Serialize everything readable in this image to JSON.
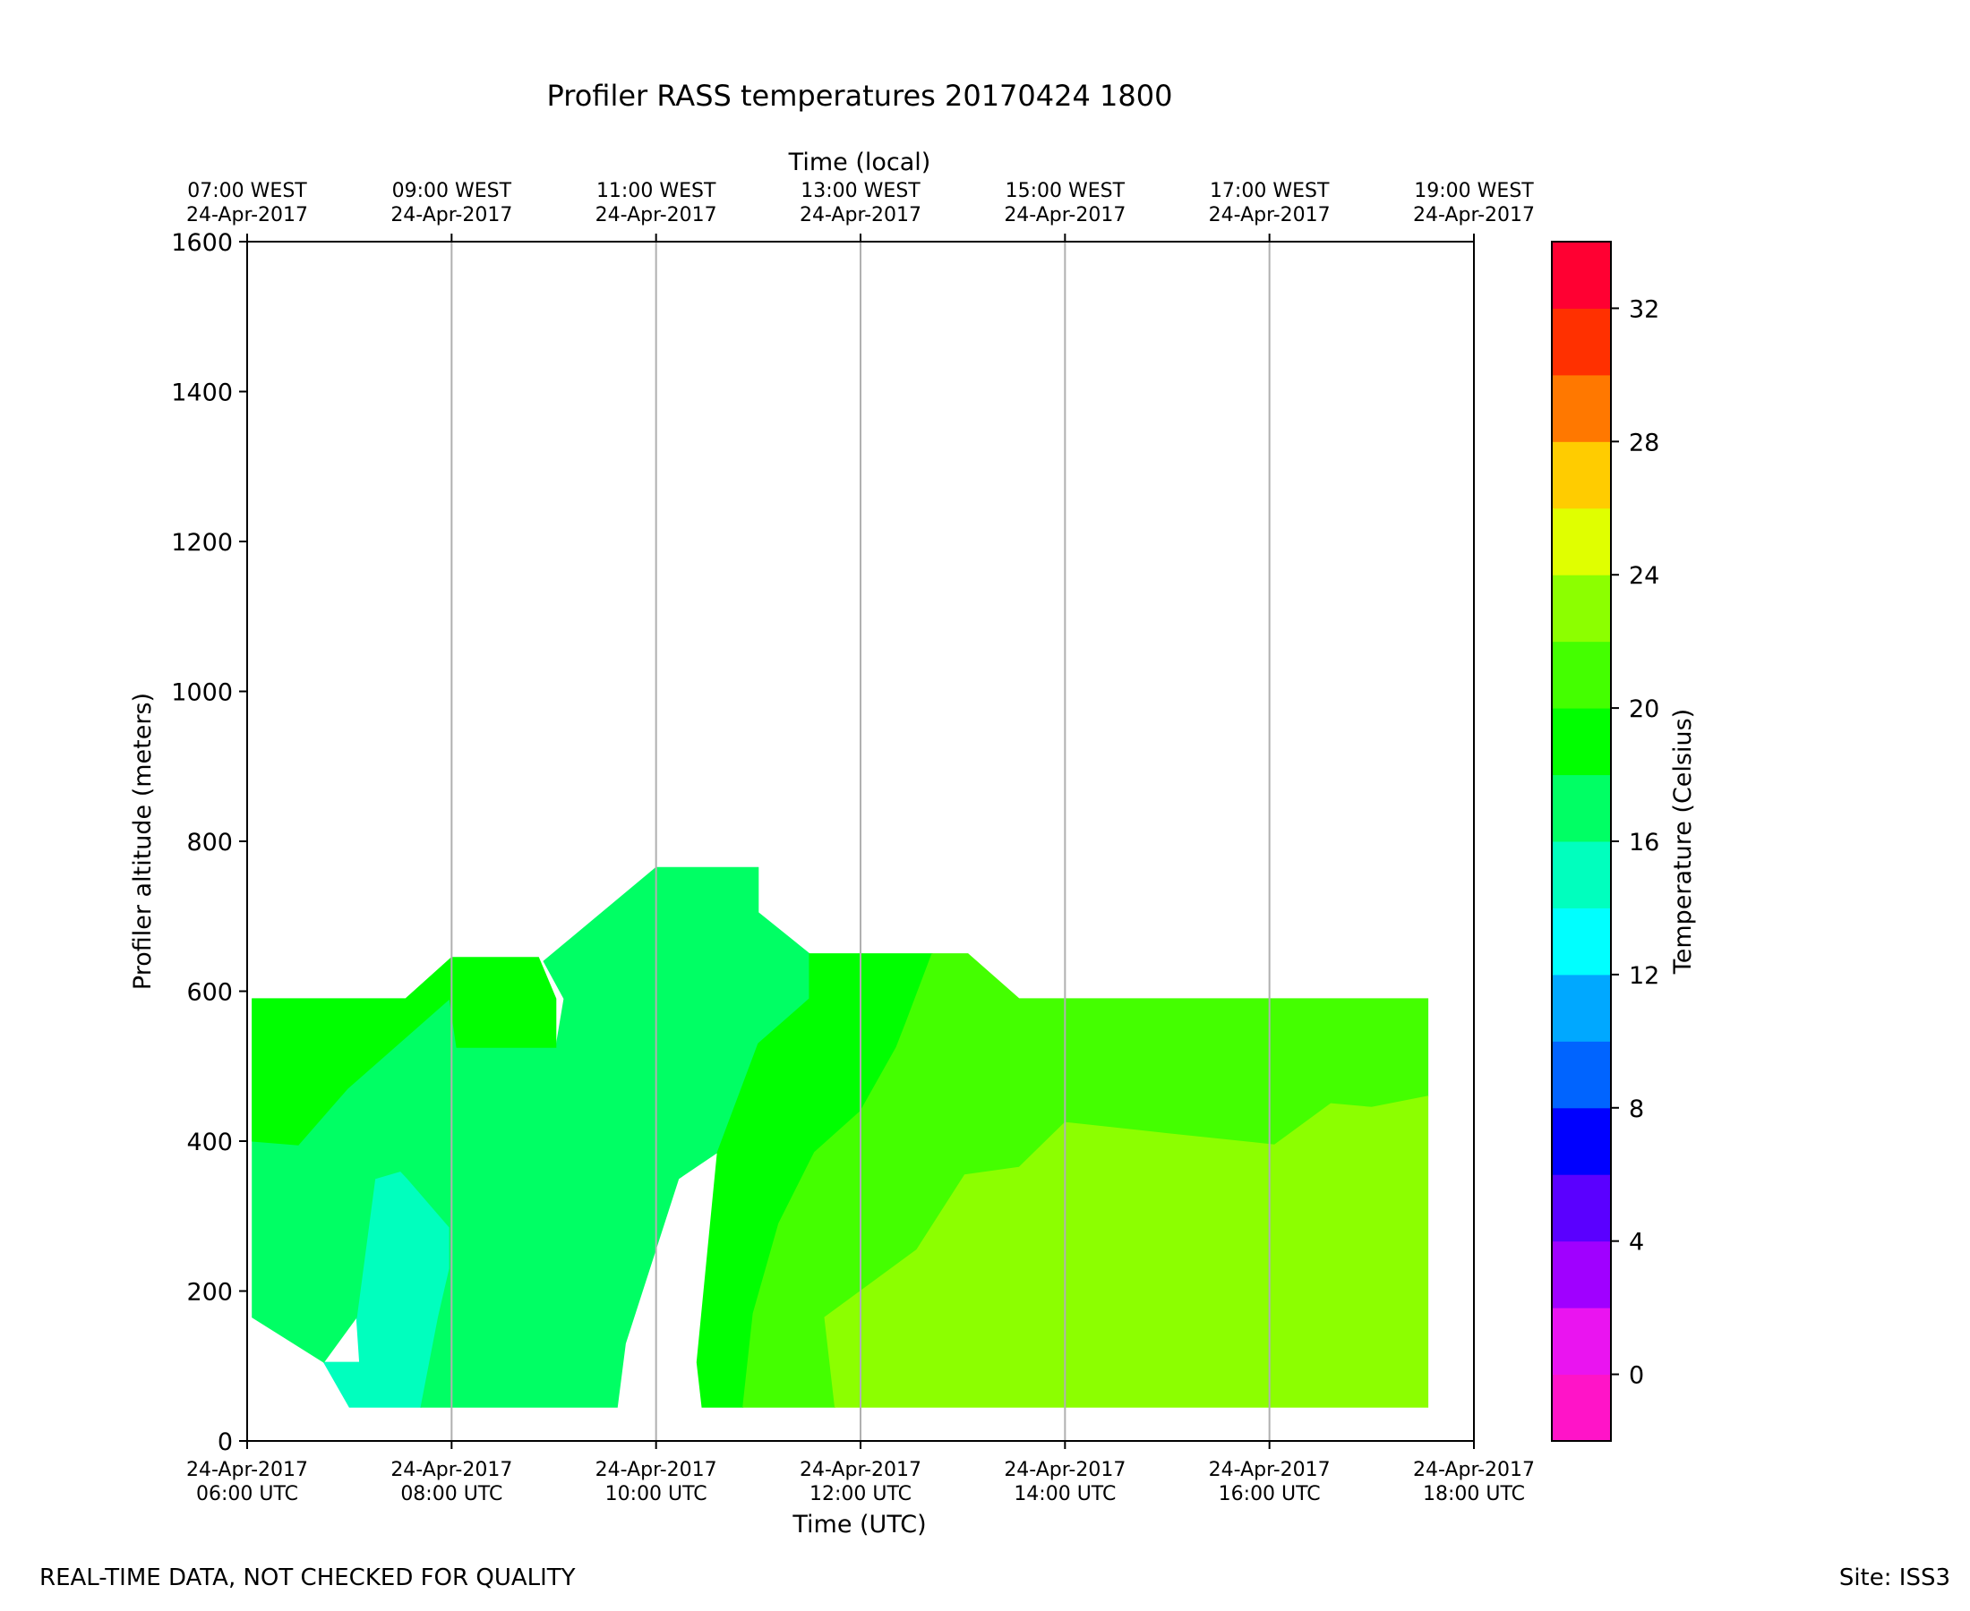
{
  "chart_data": {
    "type": "filled-contour",
    "title": "Profiler RASS temperatures 20170424 1800",
    "xlabel": "Time (UTC)",
    "x2label": "Time (local)",
    "ylabel": "Profiler altitude (meters)",
    "colorbar_label": "Temperature (Celsius)",
    "xlim_utc_hours": [
      6,
      18
    ],
    "ylim": [
      0,
      1600
    ],
    "x_ticks": [
      {
        "hour": 6,
        "date": "24-Apr-2017",
        "utc": "06:00 UTC",
        "local": "07:00 WEST"
      },
      {
        "hour": 8,
        "date": "24-Apr-2017",
        "utc": "08:00 UTC",
        "local": "09:00 WEST"
      },
      {
        "hour": 10,
        "date": "24-Apr-2017",
        "utc": "10:00 UTC",
        "local": "11:00 WEST"
      },
      {
        "hour": 12,
        "date": "24-Apr-2017",
        "utc": "12:00 UTC",
        "local": "13:00 WEST"
      },
      {
        "hour": 14,
        "date": "24-Apr-2017",
        "utc": "14:00 UTC",
        "local": "15:00 WEST"
      },
      {
        "hour": 16,
        "date": "24-Apr-2017",
        "utc": "16:00 UTC",
        "local": "17:00 WEST"
      },
      {
        "hour": 18,
        "date": "24-Apr-2017",
        "utc": "18:00 UTC",
        "local": "19:00 WEST"
      }
    ],
    "y_ticks": [
      0,
      200,
      400,
      600,
      800,
      1000,
      1200,
      1400,
      1600
    ],
    "grid": "vertical lines at x ticks",
    "colorbar_levels": [
      -2,
      0,
      2,
      4,
      6,
      8,
      10,
      12,
      14,
      16,
      18,
      20,
      22,
      24,
      26,
      28,
      30,
      32,
      34
    ],
    "colorbar_colors": [
      "#ff14c8",
      "#ea14f0",
      "#a000ff",
      "#5a00ff",
      "#0000ff",
      "#0064ff",
      "#00a8ff",
      "#00ffff",
      "#00ffbe",
      "#00ff64",
      "#00ff00",
      "#44ff00",
      "#8cff00",
      "#e0ff00",
      "#ffcc00",
      "#ff7800",
      "#ff3000",
      "#ff0032"
    ],
    "colorbar_ticks": [
      0,
      4,
      8,
      12,
      16,
      20,
      24,
      28,
      32
    ],
    "regions": [
      {
        "name": "14-16 C",
        "color": "#00ffbe",
        "points": [
          [
            7.07,
            165
          ],
          [
            7.25,
            350
          ],
          [
            7.5,
            360
          ],
          [
            7.57,
            350
          ],
          [
            7.98,
            285
          ],
          [
            7.98,
            230
          ],
          [
            7.87,
            165
          ],
          [
            7.7,
            45
          ],
          [
            7.0,
            45
          ],
          [
            6.75,
            105
          ],
          [
            7.1,
            105
          ]
        ]
      },
      {
        "name": "16-18 C",
        "color": "#00ff64",
        "points": [
          [
            6.05,
            590
          ],
          [
            6.05,
            400
          ],
          [
            6.5,
            395
          ],
          [
            6.98,
            470
          ],
          [
            7.98,
            590
          ],
          [
            8.05,
            525
          ],
          [
            9.02,
            525
          ],
          [
            9.1,
            590
          ],
          [
            8.9,
            640
          ],
          [
            10.0,
            765
          ],
          [
            11.0,
            765
          ],
          [
            11.0,
            705
          ],
          [
            11.5,
            650
          ],
          [
            11.5,
            590
          ],
          [
            11.0,
            530
          ],
          [
            10.6,
            385
          ],
          [
            10.22,
            350
          ],
          [
            9.7,
            130
          ],
          [
            9.62,
            45
          ],
          [
            7.7,
            45
          ],
          [
            7.87,
            165
          ],
          [
            7.98,
            230
          ],
          [
            7.98,
            285
          ],
          [
            7.57,
            350
          ],
          [
            7.5,
            360
          ],
          [
            7.25,
            350
          ],
          [
            7.07,
            165
          ],
          [
            6.75,
            105
          ],
          [
            6.05,
            165
          ]
        ]
      },
      {
        "name": "18-20 C",
        "color": "#00ff00",
        "points": [
          [
            6.05,
            590
          ],
          [
            7.55,
            590
          ],
          [
            8.0,
            645
          ],
          [
            8.85,
            645
          ],
          [
            9.02,
            590
          ],
          [
            9.02,
            525
          ],
          [
            8.05,
            525
          ],
          [
            7.98,
            590
          ],
          [
            6.98,
            470
          ],
          [
            6.5,
            395
          ],
          [
            6.05,
            400
          ]
        ]
      },
      {
        "name": "18-20 C",
        "color": "#00ff00",
        "points": [
          [
            11.5,
            650
          ],
          [
            12.7,
            650
          ],
          [
            12.45,
            560
          ],
          [
            12.35,
            525
          ],
          [
            12.0,
            440
          ],
          [
            11.55,
            385
          ],
          [
            11.2,
            290
          ],
          [
            10.95,
            170
          ],
          [
            10.85,
            45
          ],
          [
            10.45,
            45
          ],
          [
            10.4,
            105
          ],
          [
            10.6,
            385
          ],
          [
            11.0,
            530
          ],
          [
            11.5,
            590
          ]
        ]
      },
      {
        "name": "20-22 C",
        "color": "#44ff00",
        "points": [
          [
            12.7,
            650
          ],
          [
            13.05,
            650
          ],
          [
            13.55,
            590
          ],
          [
            17.55,
            590
          ],
          [
            17.55,
            460
          ],
          [
            17.0,
            445
          ],
          [
            16.6,
            450
          ],
          [
            16.05,
            395
          ],
          [
            15.0,
            410
          ],
          [
            14.0,
            425
          ],
          [
            13.55,
            365
          ],
          [
            13.02,
            355
          ],
          [
            12.55,
            255
          ],
          [
            12.0,
            200
          ],
          [
            11.65,
            165
          ],
          [
            11.75,
            45
          ],
          [
            10.85,
            45
          ],
          [
            10.95,
            170
          ],
          [
            11.2,
            290
          ],
          [
            11.55,
            385
          ],
          [
            12.0,
            440
          ],
          [
            12.35,
            525
          ],
          [
            12.45,
            560
          ]
        ]
      },
      {
        "name": "22-24 C",
        "color": "#8cff00",
        "points": [
          [
            11.75,
            45
          ],
          [
            17.55,
            45
          ],
          [
            17.55,
            460
          ],
          [
            17.0,
            445
          ],
          [
            16.6,
            450
          ],
          [
            16.05,
            395
          ],
          [
            15.0,
            410
          ],
          [
            14.0,
            425
          ],
          [
            13.55,
            365
          ],
          [
            13.02,
            355
          ],
          [
            12.55,
            255
          ],
          [
            12.0,
            200
          ],
          [
            11.65,
            165
          ]
        ]
      }
    ]
  },
  "footer": {
    "left": "REAL-TIME DATA, NOT CHECKED FOR QUALITY",
    "right": "Site: ISS3"
  }
}
